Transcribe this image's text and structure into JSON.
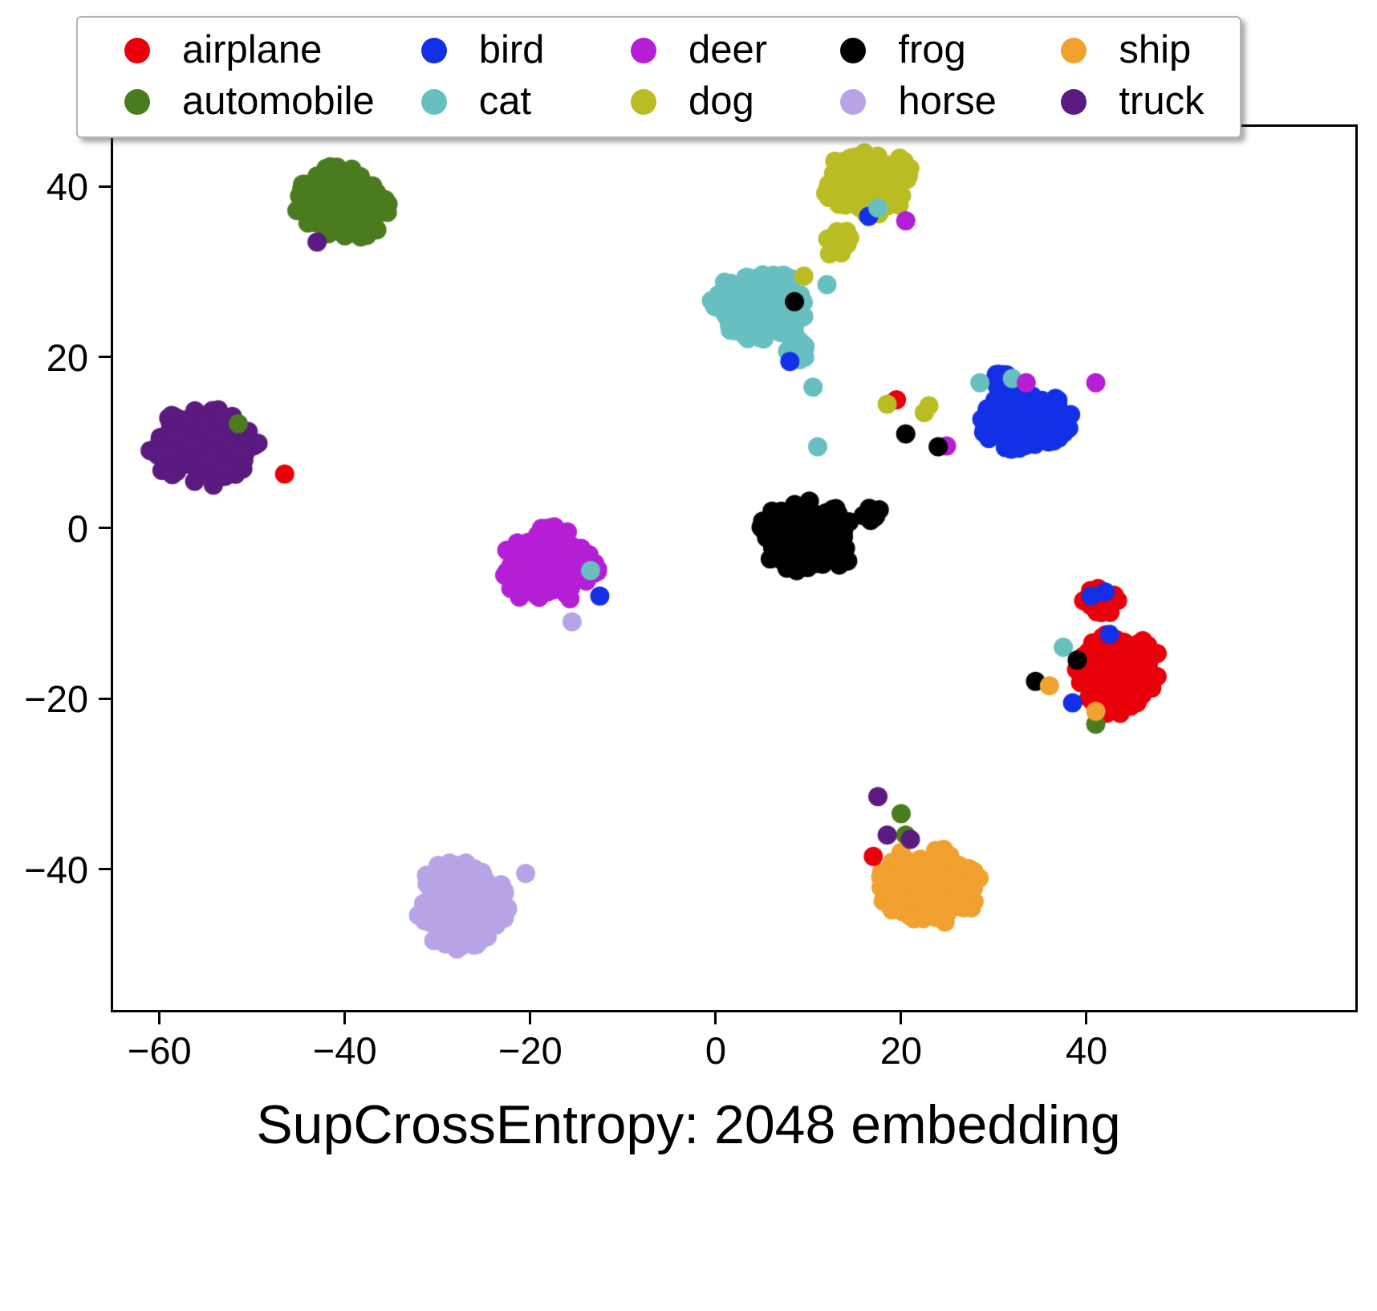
{
  "chart_data": {
    "type": "scatter",
    "title": "SupCrossEntropy: 2048 embedding",
    "xlabel": "",
    "ylabel": "",
    "xlim": [
      -65,
      69
    ],
    "ylim": [
      -56.5,
      47
    ],
    "xticks": [
      -60,
      -40,
      -20,
      0,
      20,
      40
    ],
    "yticks": [
      -40,
      -20,
      0,
      20,
      40
    ],
    "grid": false,
    "legend_position": "top, 2 rows x 5 columns, column-major",
    "point_radius_px": 12,
    "description": "t-SNE style 2D embedding scatter of CIFAR-10 classes; each series is a dense blob of points given by cluster centers (cx,cy), spreads (rx,ry) and point count n, plus explicit stray outlier points [x,y].",
    "series": [
      {
        "name": "airplane",
        "color": "#e8000b",
        "clusters": [
          {
            "cx": 43.5,
            "cy": -17,
            "rx": 4.3,
            "ry": 4.6,
            "n": 240
          },
          {
            "cx": 41.5,
            "cy": -8.8,
            "rx": 2.0,
            "ry": 1.6,
            "n": 30
          }
        ],
        "outliers": [
          [
            19.5,
            15
          ],
          [
            17,
            -38.5
          ],
          [
            -46.5,
            6.3
          ]
        ]
      },
      {
        "name": "automobile",
        "color": "#4a7c1f",
        "clusters": [
          {
            "cx": -40,
            "cy": 38,
            "rx": 5.0,
            "ry": 4.2,
            "n": 240
          }
        ],
        "outliers": [
          [
            -51.5,
            12.2
          ],
          [
            41,
            -23
          ],
          [
            20,
            -33.5
          ],
          [
            20.5,
            -36
          ]
        ]
      },
      {
        "name": "bird",
        "color": "#1330e6",
        "clusters": [
          {
            "cx": 33.5,
            "cy": 12.5,
            "rx": 4.6,
            "ry": 3.3,
            "n": 260
          },
          {
            "cx": 31,
            "cy": 17.5,
            "rx": 1.5,
            "ry": 1.2,
            "n": 12
          }
        ],
        "outliers": [
          [
            8,
            19.5
          ],
          [
            -12.5,
            -8
          ],
          [
            40.5,
            -8
          ],
          [
            42,
            -7.5
          ],
          [
            42.5,
            -12.5
          ],
          [
            38.5,
            -20.5
          ],
          [
            16.5,
            36.5
          ]
        ]
      },
      {
        "name": "cat",
        "color": "#68bfc0",
        "clusters": [
          {
            "cx": 4.5,
            "cy": 26,
            "rx": 5.3,
            "ry": 3.9,
            "n": 240
          },
          {
            "cx": 9,
            "cy": 21,
            "rx": 1.4,
            "ry": 1.4,
            "n": 10
          }
        ],
        "outliers": [
          [
            10.5,
            16.5
          ],
          [
            11,
            9.5
          ],
          [
            -13.5,
            -5
          ],
          [
            37.5,
            -14
          ],
          [
            28.5,
            17
          ],
          [
            32,
            17.5
          ],
          [
            17.5,
            37.5
          ],
          [
            12,
            28.5
          ]
        ]
      },
      {
        "name": "deer",
        "color": "#b41fd6",
        "clusters": [
          {
            "cx": -18,
            "cy": -4.5,
            "rx": 4.9,
            "ry": 4.3,
            "n": 250
          }
        ],
        "outliers": [
          [
            20.5,
            36
          ],
          [
            33.5,
            17
          ],
          [
            41,
            17
          ],
          [
            24.9,
            9.6
          ]
        ]
      },
      {
        "name": "dog",
        "color": "#b9bd23",
        "clusters": [
          {
            "cx": 16.5,
            "cy": 40.5,
            "rx": 4.6,
            "ry": 3.6,
            "n": 240
          },
          {
            "cx": 13,
            "cy": 33.5,
            "rx": 1.6,
            "ry": 2.2,
            "n": 20
          }
        ],
        "outliers": [
          [
            9.5,
            29.5
          ],
          [
            22.5,
            13.5
          ],
          [
            23,
            14.3
          ],
          [
            18.5,
            14.5
          ]
        ]
      },
      {
        "name": "frog",
        "color": "#000000",
        "clusters": [
          {
            "cx": 10,
            "cy": -1,
            "rx": 5.0,
            "ry": 4.6,
            "n": 260
          },
          {
            "cx": 16.5,
            "cy": 1.8,
            "rx": 1.2,
            "ry": 1.0,
            "n": 8
          }
        ],
        "outliers": [
          [
            8.5,
            26.5
          ],
          [
            20.5,
            11
          ],
          [
            24,
            9.5
          ],
          [
            39,
            -15.5
          ],
          [
            34.5,
            -18
          ]
        ]
      },
      {
        "name": "horse",
        "color": "#b7a4e6",
        "clusters": [
          {
            "cx": -27.5,
            "cy": -44,
            "rx": 4.8,
            "ry": 5.0,
            "n": 250
          }
        ],
        "outliers": [
          [
            -20.5,
            -40.5
          ],
          [
            -15.5,
            -11
          ]
        ]
      },
      {
        "name": "ship",
        "color": "#f1a12f",
        "clusters": [
          {
            "cx": 23,
            "cy": -42,
            "rx": 5.2,
            "ry": 4.4,
            "n": 250
          }
        ],
        "outliers": [
          [
            36,
            -18.5
          ],
          [
            41,
            -21.5
          ]
        ]
      },
      {
        "name": "truck",
        "color": "#5b1a80",
        "clusters": [
          {
            "cx": -55,
            "cy": 9.5,
            "rx": 5.6,
            "ry": 4.3,
            "n": 260
          }
        ],
        "outliers": [
          [
            -43,
            33.5
          ],
          [
            17.5,
            -31.5
          ],
          [
            18.5,
            -36
          ],
          [
            21,
            -36.5
          ]
        ]
      }
    ]
  }
}
